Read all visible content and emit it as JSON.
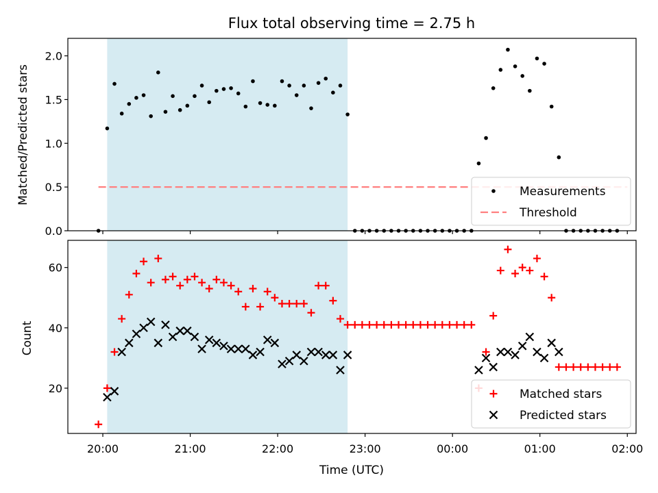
{
  "chart_data": [
    {
      "type": "scatter",
      "title": "Flux total observing time = 2.75 h",
      "xlabel": "",
      "ylabel": "Matched/Predicted stars",
      "xlim": [
        "19:36",
        "02:06"
      ],
      "ylim": [
        0,
        2.2
      ],
      "yticks": [
        "0.0",
        "0.5",
        "1.0",
        "1.5",
        "2.0"
      ],
      "highlight_span": [
        "20:03",
        "22:48"
      ],
      "legend": {
        "position": "lower-right",
        "entries": [
          "Measurements",
          "Threshold"
        ]
      },
      "threshold": {
        "name": "Threshold",
        "value": 0.5,
        "x_start": "19:57",
        "x_end": "02:00",
        "color": "#ff7f7f"
      },
      "series": [
        {
          "name": "Measurements",
          "color": "#000000",
          "points": [
            [
              "19:57",
              0.0
            ],
            [
              "20:03",
              1.17
            ],
            [
              "20:08",
              1.68
            ],
            [
              "20:13",
              1.34
            ],
            [
              "20:18",
              1.45
            ],
            [
              "20:23",
              1.52
            ],
            [
              "20:28",
              1.55
            ],
            [
              "20:33",
              1.31
            ],
            [
              "20:38",
              1.81
            ],
            [
              "20:43",
              1.36
            ],
            [
              "20:48",
              1.54
            ],
            [
              "20:53",
              1.38
            ],
            [
              "20:58",
              1.43
            ],
            [
              "21:03",
              1.54
            ],
            [
              "21:08",
              1.66
            ],
            [
              "21:13",
              1.47
            ],
            [
              "21:18",
              1.6
            ],
            [
              "21:23",
              1.62
            ],
            [
              "21:28",
              1.63
            ],
            [
              "21:33",
              1.57
            ],
            [
              "21:38",
              1.42
            ],
            [
              "21:43",
              1.71
            ],
            [
              "21:48",
              1.46
            ],
            [
              "21:53",
              1.44
            ],
            [
              "21:58",
              1.43
            ],
            [
              "22:03",
              1.71
            ],
            [
              "22:08",
              1.66
            ],
            [
              "22:13",
              1.55
            ],
            [
              "22:18",
              1.66
            ],
            [
              "22:23",
              1.4
            ],
            [
              "22:28",
              1.69
            ],
            [
              "22:33",
              1.74
            ],
            [
              "22:38",
              1.58
            ],
            [
              "22:43",
              1.66
            ],
            [
              "22:48",
              1.33
            ],
            [
              "22:53",
              0.0
            ],
            [
              "22:58",
              0.0
            ],
            [
              "23:03",
              0.0
            ],
            [
              "23:08",
              0.0
            ],
            [
              "23:13",
              0.0
            ],
            [
              "23:18",
              0.0
            ],
            [
              "23:23",
              0.0
            ],
            [
              "23:28",
              0.0
            ],
            [
              "23:33",
              0.0
            ],
            [
              "23:38",
              0.0
            ],
            [
              "23:43",
              0.0
            ],
            [
              "23:48",
              0.0
            ],
            [
              "23:53",
              0.0
            ],
            [
              "23:58",
              0.0
            ],
            [
              "00:03",
              0.0
            ],
            [
              "00:08",
              0.0
            ],
            [
              "00:13",
              0.0
            ],
            [
              "00:18",
              0.77
            ],
            [
              "00:23",
              1.06
            ],
            [
              "00:28",
              1.63
            ],
            [
              "00:33",
              1.84
            ],
            [
              "00:38",
              2.07
            ],
            [
              "00:43",
              1.88
            ],
            [
              "00:48",
              1.77
            ],
            [
              "00:53",
              1.6
            ],
            [
              "00:58",
              1.97
            ],
            [
              "01:03",
              1.91
            ],
            [
              "01:08",
              1.42
            ],
            [
              "01:13",
              0.84
            ],
            [
              "01:18",
              0.0
            ],
            [
              "01:23",
              0.0
            ],
            [
              "01:28",
              0.0
            ],
            [
              "01:33",
              0.0
            ],
            [
              "01:38",
              0.0
            ],
            [
              "01:43",
              0.0
            ],
            [
              "01:48",
              0.0
            ],
            [
              "01:53",
              0.0
            ]
          ]
        }
      ]
    },
    {
      "type": "scatter",
      "title": "",
      "xlabel": "Time (UTC)",
      "ylabel": "Count",
      "xlim": [
        "19:36",
        "02:06"
      ],
      "ylim": [
        5,
        69
      ],
      "yticks": [
        "20",
        "40",
        "60"
      ],
      "xticks": [
        "20:00",
        "21:00",
        "22:00",
        "23:00",
        "00:00",
        "01:00",
        "02:00"
      ],
      "highlight_span": [
        "20:03",
        "22:48"
      ],
      "legend": {
        "position": "lower-right",
        "entries": [
          "Matched stars",
          "Predicted stars"
        ]
      },
      "series": [
        {
          "name": "Matched stars",
          "marker": "+",
          "color": "#ff0000",
          "points": [
            [
              "19:57",
              8
            ],
            [
              "20:03",
              20
            ],
            [
              "20:08",
              32
            ],
            [
              "20:13",
              43
            ],
            [
              "20:18",
              51
            ],
            [
              "20:23",
              58
            ],
            [
              "20:28",
              62
            ],
            [
              "20:33",
              55
            ],
            [
              "20:38",
              63
            ],
            [
              "20:43",
              56
            ],
            [
              "20:48",
              57
            ],
            [
              "20:53",
              54
            ],
            [
              "20:58",
              56
            ],
            [
              "21:03",
              57
            ],
            [
              "21:08",
              55
            ],
            [
              "21:13",
              53
            ],
            [
              "21:18",
              56
            ],
            [
              "21:23",
              55
            ],
            [
              "21:28",
              54
            ],
            [
              "21:33",
              52
            ],
            [
              "21:38",
              47
            ],
            [
              "21:43",
              53
            ],
            [
              "21:48",
              47
            ],
            [
              "21:53",
              52
            ],
            [
              "21:58",
              50
            ],
            [
              "22:03",
              48
            ],
            [
              "22:08",
              48
            ],
            [
              "22:13",
              48
            ],
            [
              "22:18",
              48
            ],
            [
              "22:23",
              45
            ],
            [
              "22:28",
              54
            ],
            [
              "22:33",
              54
            ],
            [
              "22:38",
              49
            ],
            [
              "22:43",
              43
            ],
            [
              "22:48",
              41
            ],
            [
              "22:53",
              41
            ],
            [
              "22:58",
              41
            ],
            [
              "23:03",
              41
            ],
            [
              "23:08",
              41
            ],
            [
              "23:13",
              41
            ],
            [
              "23:18",
              41
            ],
            [
              "23:23",
              41
            ],
            [
              "23:28",
              41
            ],
            [
              "23:33",
              41
            ],
            [
              "23:38",
              41
            ],
            [
              "23:43",
              41
            ],
            [
              "23:48",
              41
            ],
            [
              "23:53",
              41
            ],
            [
              "23:58",
              41
            ],
            [
              "00:03",
              41
            ],
            [
              "00:08",
              41
            ],
            [
              "00:13",
              41
            ],
            [
              "00:18",
              20
            ],
            [
              "00:23",
              32
            ],
            [
              "00:28",
              44
            ],
            [
              "00:33",
              59
            ],
            [
              "00:38",
              66
            ],
            [
              "00:43",
              58
            ],
            [
              "00:48",
              60
            ],
            [
              "00:53",
              59
            ],
            [
              "00:58",
              63
            ],
            [
              "01:03",
              57
            ],
            [
              "01:08",
              50
            ],
            [
              "01:13",
              27
            ],
            [
              "01:18",
              27
            ],
            [
              "01:23",
              27
            ],
            [
              "01:28",
              27
            ],
            [
              "01:33",
              27
            ],
            [
              "01:38",
              27
            ],
            [
              "01:43",
              27
            ],
            [
              "01:48",
              27
            ],
            [
              "01:53",
              27
            ]
          ]
        },
        {
          "name": "Predicted stars",
          "marker": "x",
          "color": "#000000",
          "points": [
            [
              "20:03",
              17
            ],
            [
              "20:08",
              19
            ],
            [
              "20:13",
              32
            ],
            [
              "20:18",
              35
            ],
            [
              "20:23",
              38
            ],
            [
              "20:28",
              40
            ],
            [
              "20:33",
              42
            ],
            [
              "20:38",
              35
            ],
            [
              "20:43",
              41
            ],
            [
              "20:48",
              37
            ],
            [
              "20:53",
              39
            ],
            [
              "20:58",
              39
            ],
            [
              "21:03",
              37
            ],
            [
              "21:08",
              33
            ],
            [
              "21:13",
              36
            ],
            [
              "21:18",
              35
            ],
            [
              "21:23",
              34
            ],
            [
              "21:28",
              33
            ],
            [
              "21:33",
              33
            ],
            [
              "21:38",
              33
            ],
            [
              "21:43",
              31
            ],
            [
              "21:48",
              32
            ],
            [
              "21:53",
              36
            ],
            [
              "21:58",
              35
            ],
            [
              "22:03",
              28
            ],
            [
              "22:08",
              29
            ],
            [
              "22:13",
              31
            ],
            [
              "22:18",
              29
            ],
            [
              "22:23",
              32
            ],
            [
              "22:28",
              32
            ],
            [
              "22:33",
              31
            ],
            [
              "22:38",
              31
            ],
            [
              "22:43",
              26
            ],
            [
              "22:48",
              31
            ],
            [
              "00:18",
              26
            ],
            [
              "00:23",
              30
            ],
            [
              "00:28",
              27
            ],
            [
              "00:33",
              32
            ],
            [
              "00:38",
              32
            ],
            [
              "00:43",
              31
            ],
            [
              "00:48",
              34
            ],
            [
              "00:53",
              37
            ],
            [
              "00:58",
              32
            ],
            [
              "01:03",
              30
            ],
            [
              "01:08",
              35
            ],
            [
              "01:13",
              32
            ]
          ]
        }
      ]
    }
  ]
}
